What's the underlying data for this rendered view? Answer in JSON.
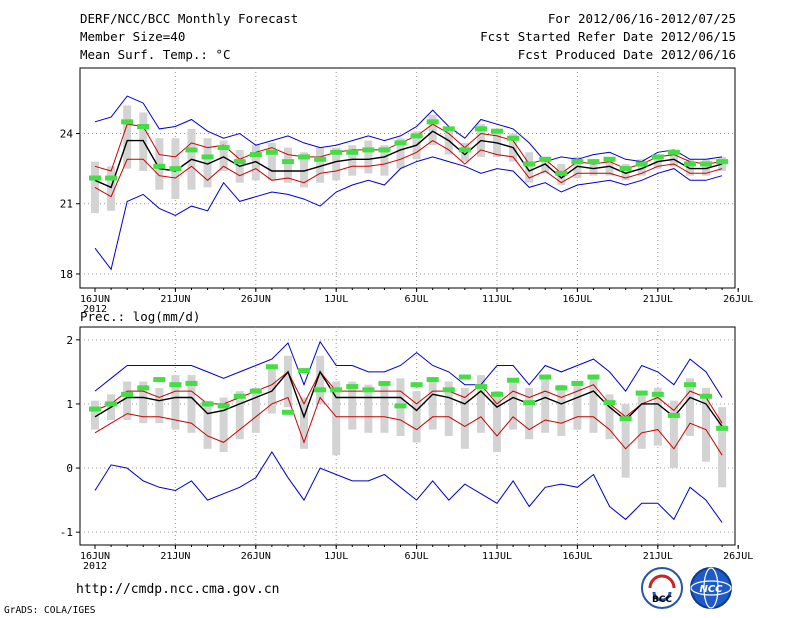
{
  "header": {
    "title": "DERF/NCC/BCC Monthly Forecast",
    "member": "Member Size=40",
    "variable": "Mean Surf. Temp.: °C",
    "period": "For 2012/06/16-2012/07/25",
    "refer": "Fcst Started Refer Date 2012/06/15",
    "produced": "Fcst Produced Date 2012/06/16"
  },
  "footer": {
    "url": "http://cmdp.ncc.cma.gov.cn",
    "credit": "GrADS: COLA/IGES",
    "logo_bcc": "BCC",
    "logo_ncc": "NCC"
  },
  "colors": {
    "envelope": "#0000cc",
    "spread": "#cc0000",
    "mean": "#000000",
    "marker": "#44dd44",
    "box": "#d3d3d3",
    "grid": "#999999"
  },
  "chart_data": [
    {
      "type": "line",
      "title": "Mean Surf. Temp.: °C",
      "x_ticks": [
        "16JUN",
        "21JUN",
        "26JUN",
        "1JUL",
        "6JUL",
        "11JUL",
        "16JUL",
        "21JUL",
        "26JUL"
      ],
      "x_sub": "2012",
      "y_ticks": [
        18,
        21,
        24
      ],
      "ylim": [
        17.4,
        26.8
      ],
      "days": 40,
      "series": [
        {
          "name": "max",
          "values": [
            24.5,
            24.7,
            25.6,
            25.3,
            24.2,
            24.3,
            24.6,
            24.1,
            23.8,
            24.0,
            23.5,
            23.7,
            23.9,
            23.6,
            23.4,
            23.5,
            23.7,
            23.9,
            23.7,
            23.9,
            24.3,
            25.0,
            24.3,
            23.8,
            24.6,
            24.4,
            24.2,
            23.6,
            22.8,
            23.0,
            22.9,
            23.1,
            23.2,
            22.9,
            22.8,
            23.2,
            23.3,
            22.9,
            22.9,
            23.0
          ]
        },
        {
          "name": "upper",
          "values": [
            22.6,
            22.4,
            24.4,
            24.3,
            23.1,
            23.0,
            23.6,
            23.4,
            23.5,
            22.9,
            23.2,
            23.4,
            23.1,
            23.0,
            23.0,
            23.2,
            23.3,
            23.3,
            23.3,
            23.6,
            23.9,
            24.4,
            24.0,
            23.4,
            24.0,
            23.9,
            23.7,
            22.7,
            22.9,
            22.3,
            22.8,
            22.7,
            22.8,
            22.5,
            22.7,
            23.0,
            23.1,
            22.8,
            22.7,
            22.8
          ]
        },
        {
          "name": "mean",
          "values": [
            22.0,
            21.7,
            23.7,
            23.7,
            22.5,
            22.4,
            22.9,
            22.7,
            23.0,
            22.6,
            22.8,
            22.4,
            22.4,
            22.4,
            22.6,
            22.8,
            22.9,
            22.9,
            23.0,
            23.3,
            23.5,
            24.1,
            23.7,
            23.1,
            23.7,
            23.6,
            23.4,
            22.4,
            22.7,
            22.1,
            22.6,
            22.5,
            22.6,
            22.3,
            22.5,
            22.8,
            22.9,
            22.5,
            22.5,
            22.7
          ]
        },
        {
          "name": "lower",
          "values": [
            21.7,
            21.3,
            22.9,
            22.9,
            22.2,
            22.1,
            22.6,
            22.0,
            22.6,
            22.2,
            22.5,
            22.0,
            22.1,
            21.9,
            22.3,
            22.4,
            22.6,
            22.6,
            22.7,
            22.9,
            23.2,
            23.7,
            23.3,
            22.7,
            23.3,
            23.1,
            23.0,
            22.1,
            22.4,
            21.9,
            22.3,
            22.3,
            22.3,
            22.1,
            22.3,
            22.6,
            22.7,
            22.3,
            22.3,
            22.5
          ]
        },
        {
          "name": "min",
          "values": [
            19.1,
            18.2,
            21.1,
            21.4,
            20.8,
            20.5,
            20.9,
            20.7,
            21.9,
            21.1,
            21.3,
            21.5,
            21.4,
            21.2,
            20.9,
            21.5,
            21.8,
            22.0,
            21.8,
            22.5,
            22.8,
            23.0,
            22.8,
            22.6,
            22.3,
            22.5,
            22.4,
            21.7,
            21.9,
            21.5,
            21.8,
            21.9,
            22.0,
            21.8,
            22.0,
            22.3,
            22.5,
            22.0,
            22.0,
            22.2
          ]
        },
        {
          "name": "ensemble_marker",
          "values": [
            22.1,
            22.1,
            24.5,
            24.3,
            22.6,
            22.5,
            23.3,
            23.0,
            23.4,
            22.8,
            23.1,
            23.2,
            22.8,
            23.0,
            22.9,
            23.2,
            23.2,
            23.3,
            23.3,
            23.6,
            23.9,
            24.5,
            24.2,
            23.3,
            24.2,
            24.1,
            23.8,
            22.7,
            22.9,
            22.3,
            22.8,
            22.8,
            22.9,
            22.5,
            22.7,
            23.0,
            23.2,
            22.7,
            22.7,
            22.8
          ]
        },
        {
          "name": "box_top",
          "values": [
            22.8,
            22.6,
            25.2,
            24.9,
            23.8,
            23.8,
            24.2,
            23.8,
            23.7,
            23.3,
            23.5,
            23.6,
            23.4,
            23.2,
            23.4,
            23.4,
            23.5,
            23.7,
            23.5,
            23.8,
            24.1,
            24.8,
            24.2,
            23.6,
            24.4,
            24.2,
            24.0,
            23.2,
            23.0,
            22.7,
            23.0,
            22.9,
            23.0,
            22.7,
            22.9,
            23.1,
            23.2,
            22.9,
            22.9,
            23.0
          ]
        },
        {
          "name": "box_bottom",
          "values": [
            20.6,
            20.7,
            22.5,
            22.4,
            21.6,
            21.2,
            21.6,
            21.7,
            22.4,
            21.9,
            22.0,
            22.0,
            21.9,
            21.7,
            21.9,
            22.0,
            22.2,
            22.3,
            22.2,
            22.5,
            22.9,
            23.5,
            23.1,
            22.8,
            23.0,
            23.0,
            22.8,
            21.9,
            22.3,
            21.8,
            22.1,
            22.2,
            22.2,
            22.0,
            22.2,
            22.5,
            22.6,
            22.2,
            22.2,
            22.4
          ]
        }
      ]
    },
    {
      "type": "line",
      "title": "Prec.: log(mm/d)",
      "x_ticks": [
        "16JUN",
        "21JUN",
        "26JUN",
        "1JUL",
        "6JUL",
        "11JUL",
        "16JUL",
        "21JUL",
        "26JUL"
      ],
      "x_sub": "2012",
      "y_ticks": [
        -1,
        0,
        1,
        2
      ],
      "ylim": [
        -1.2,
        2.2
      ],
      "days": 40,
      "series": [
        {
          "name": "max",
          "values": [
            1.2,
            1.4,
            1.6,
            1.6,
            1.6,
            1.6,
            1.6,
            1.5,
            1.4,
            1.5,
            1.6,
            1.7,
            1.95,
            1.3,
            1.97,
            1.6,
            1.6,
            1.5,
            1.5,
            1.6,
            1.8,
            1.6,
            1.5,
            1.3,
            1.3,
            1.6,
            1.6,
            1.3,
            1.6,
            1.5,
            1.6,
            1.7,
            1.5,
            1.2,
            1.6,
            1.5,
            1.3,
            1.7,
            1.5,
            1.1
          ]
        },
        {
          "name": "upper",
          "values": [
            0.9,
            1.0,
            1.2,
            1.2,
            1.1,
            1.2,
            1.2,
            1.0,
            1.0,
            1.1,
            1.2,
            1.3,
            1.5,
            1.0,
            1.5,
            1.2,
            1.2,
            1.2,
            1.2,
            1.2,
            1.0,
            1.2,
            1.2,
            1.1,
            1.3,
            1.0,
            1.2,
            1.1,
            1.2,
            1.1,
            1.2,
            1.3,
            1.0,
            0.8,
            1.0,
            1.1,
            0.9,
            1.2,
            1.1,
            0.7
          ]
        },
        {
          "name": "mean",
          "values": [
            0.8,
            0.95,
            1.1,
            1.1,
            1.05,
            1.1,
            1.1,
            0.85,
            0.9,
            1.0,
            1.1,
            1.2,
            1.5,
            0.8,
            1.5,
            1.1,
            1.1,
            1.1,
            1.1,
            1.1,
            0.9,
            1.15,
            1.1,
            1.0,
            1.2,
            0.95,
            1.1,
            1.0,
            1.1,
            1.0,
            1.1,
            1.2,
            0.95,
            0.75,
            1.0,
            1.0,
            0.8,
            1.1,
            1.0,
            0.65
          ]
        },
        {
          "name": "lower",
          "values": [
            0.55,
            0.7,
            0.85,
            0.8,
            0.8,
            0.75,
            0.7,
            0.5,
            0.4,
            0.6,
            0.8,
            1.0,
            1.1,
            0.4,
            1.1,
            0.8,
            0.8,
            0.8,
            0.8,
            0.75,
            0.6,
            0.8,
            0.8,
            0.65,
            0.8,
            0.5,
            0.8,
            0.6,
            0.75,
            0.7,
            0.8,
            0.8,
            0.6,
            0.3,
            0.55,
            0.6,
            0.3,
            0.7,
            0.6,
            0.2
          ]
        },
        {
          "name": "min",
          "values": [
            -0.35,
            0.05,
            0.0,
            -0.2,
            -0.3,
            -0.35,
            -0.2,
            -0.5,
            -0.4,
            -0.3,
            -0.15,
            0.25,
            -0.15,
            -0.5,
            0.0,
            -0.1,
            -0.2,
            -0.2,
            -0.1,
            -0.3,
            -0.5,
            -0.2,
            -0.5,
            -0.25,
            -0.4,
            -0.55,
            -0.2,
            -0.6,
            -0.3,
            -0.25,
            -0.3,
            -0.1,
            -0.6,
            -0.8,
            -0.55,
            -0.55,
            -0.8,
            -0.3,
            -0.5,
            -0.85
          ]
        },
        {
          "name": "ensemble_marker",
          "values": [
            0.92,
            1.0,
            1.15,
            1.25,
            1.38,
            1.3,
            1.32,
            1.0,
            0.97,
            1.12,
            1.2,
            1.58,
            0.87,
            1.52,
            1.22,
            1.22,
            1.27,
            1.22,
            1.32,
            0.97,
            1.3,
            1.38,
            1.22,
            1.42,
            1.27,
            1.15,
            1.37,
            1.02,
            1.42,
            1.25,
            1.32,
            1.42,
            1.02,
            0.77,
            1.17,
            1.15,
            0.82,
            1.3,
            1.12,
            0.62
          ]
        },
        {
          "name": "box_top",
          "values": [
            1.05,
            1.15,
            1.35,
            1.35,
            1.25,
            1.45,
            1.45,
            1.05,
            1.1,
            1.2,
            1.25,
            1.55,
            1.75,
            1.1,
            1.75,
            1.35,
            1.35,
            1.3,
            1.3,
            1.4,
            1.2,
            1.4,
            1.35,
            1.25,
            1.45,
            1.2,
            1.35,
            1.25,
            1.4,
            1.3,
            1.35,
            1.45,
            1.15,
            1.0,
            1.2,
            1.25,
            1.05,
            1.4,
            1.25,
            0.95
          ]
        },
        {
          "name": "box_bottom",
          "values": [
            0.6,
            0.75,
            0.75,
            0.7,
            0.7,
            0.6,
            0.55,
            0.3,
            0.25,
            0.45,
            0.55,
            0.85,
            0.95,
            0.3,
            1.0,
            0.2,
            0.6,
            0.55,
            0.55,
            0.5,
            0.4,
            0.6,
            0.5,
            0.3,
            0.55,
            0.25,
            0.6,
            0.45,
            0.55,
            0.5,
            0.6,
            0.55,
            0.45,
            -0.15,
            0.3,
            0.35,
            0.0,
            0.5,
            0.1,
            -0.3
          ]
        }
      ]
    }
  ]
}
